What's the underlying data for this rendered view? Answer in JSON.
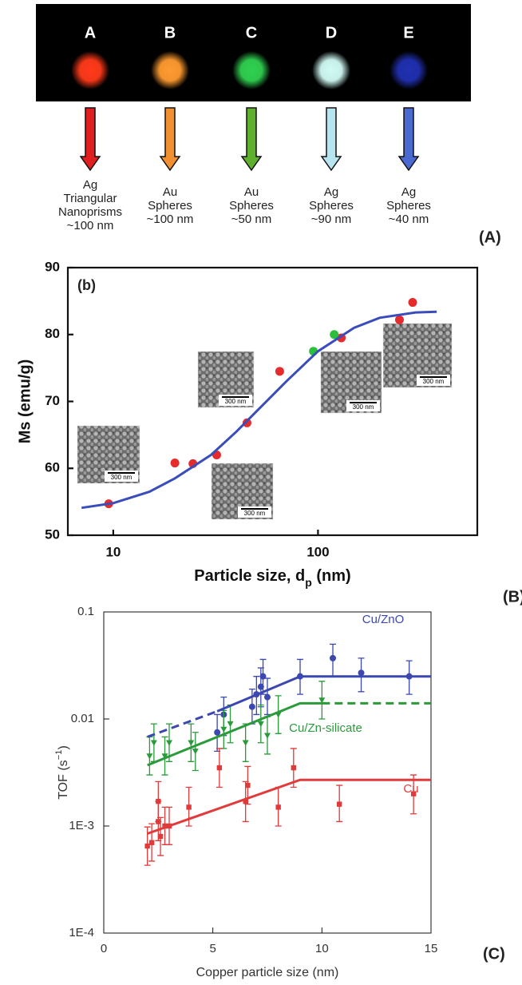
{
  "panel_a": {
    "panel_label": "(A)",
    "items": [
      {
        "letter": "A",
        "glow": "#ff3a1a",
        "arrow": "#e02020",
        "lines": [
          "Ag",
          "Triangular",
          "Nanoprisms",
          "~100 nm"
        ]
      },
      {
        "letter": "B",
        "glow": "#ff9a30",
        "arrow": "#f09030",
        "lines": [
          "Au",
          "Spheres",
          "~100 nm"
        ]
      },
      {
        "letter": "C",
        "glow": "#30d050",
        "arrow": "#60b030",
        "lines": [
          "Au",
          "Spheres",
          "~50 nm"
        ]
      },
      {
        "letter": "D",
        "glow": "#d0fbf4",
        "arrow": "#b8e4f0",
        "lines": [
          "Ag",
          "Spheres",
          "~90 nm"
        ]
      },
      {
        "letter": "E",
        "glow": "#2030b0",
        "arrow": "#4a6ad0",
        "lines": [
          "Ag",
          "Spheres",
          "~40 nm"
        ]
      }
    ]
  },
  "chart_data": [
    {
      "type": "scatter",
      "panel_label": "(B)",
      "title": "(b)",
      "xlabel": {
        "main": "Particle size, d",
        "sub": "p",
        "tail": " (nm)"
      },
      "ylabel": "Ms (emu/g)",
      "xscale": "log",
      "xlim": [
        6,
        600
      ],
      "xticks": [
        10,
        100
      ],
      "ylim": [
        50,
        90
      ],
      "yticks": [
        50,
        60,
        70,
        80,
        90
      ],
      "series": [
        {
          "marker": "circle",
          "color": "#e52b2b",
          "x": [
            9.5,
            20,
            24.5,
            32,
            45,
            65,
            130,
            250,
            290
          ],
          "values": [
            54.7,
            60.8,
            60.7,
            62,
            66.8,
            74.5,
            79.5,
            82.2,
            84.8
          ]
        },
        {
          "marker": "circle",
          "color": "#2bbf3b",
          "x": [
            95,
            120
          ],
          "values": [
            77.5,
            80
          ]
        },
        {
          "type": "line",
          "color": "#3a4dbb",
          "x": [
            7,
            10,
            15,
            20,
            30,
            40,
            50,
            70,
            100,
            150,
            200,
            300,
            380
          ],
          "values": [
            54.1,
            54.8,
            56.5,
            58.5,
            62,
            65.5,
            68.5,
            73,
            77.5,
            81,
            82.5,
            83.3,
            83.4
          ]
        }
      ],
      "insets": [
        {
          "label": "300 nm"
        },
        {
          "label": "300 nm"
        },
        {
          "label": "300 nm"
        },
        {
          "label": "300 nm"
        },
        {
          "label": "300 nm"
        }
      ]
    },
    {
      "type": "scatter",
      "panel_label": "(C)",
      "xlabel": {
        "main": "Copper particle size (nm)"
      },
      "ylabel": {
        "main": "TOF (s",
        "sup": "−1",
        "tail": ")"
      },
      "yscale": "log",
      "xlim": [
        0,
        15
      ],
      "xticks": [
        0,
        5,
        10,
        15
      ],
      "ylim": [
        0.0001,
        0.1
      ],
      "yticks": [
        {
          "value": 0.0001,
          "label": "1E-4"
        },
        {
          "value": 0.001,
          "label": "1E-3"
        },
        0.01,
        0.1
      ],
      "series": [
        {
          "marker": "circle",
          "color": "#3c48b0",
          "x": [
            5.2,
            5.5,
            6.8,
            7.0,
            7.2,
            7.3,
            7.5,
            9.0,
            10.5,
            11.8,
            14.0
          ],
          "values": [
            0.0075,
            0.011,
            0.013,
            0.017,
            0.02,
            0.025,
            0.016,
            0.025,
            0.037,
            0.027,
            0.025
          ],
          "lower": [
            0.005,
            0.007,
            0.009,
            0.011,
            0.013,
            0.017,
            0.011,
            0.017,
            0.025,
            0.018,
            0.017
          ],
          "upper": [
            0.011,
            0.016,
            0.019,
            0.025,
            0.03,
            0.036,
            0.024,
            0.036,
            0.05,
            0.037,
            0.035
          ]
        },
        {
          "marker": "triangle",
          "color": "#2a9a3a",
          "x": [
            2.1,
            2.3,
            2.8,
            3.0,
            4.0,
            4.2,
            5.5,
            5.8,
            6.5,
            7.2,
            7.5,
            8.0,
            10.0
          ],
          "values": [
            0.0045,
            0.006,
            0.0045,
            0.006,
            0.006,
            0.005,
            0.008,
            0.009,
            0.006,
            0.009,
            0.007,
            0.011,
            0.015
          ],
          "lower": [
            0.003,
            0.004,
            0.003,
            0.004,
            0.004,
            0.0033,
            0.0053,
            0.006,
            0.004,
            0.006,
            0.0047,
            0.0073,
            0.01
          ],
          "upper": [
            0.0068,
            0.009,
            0.0068,
            0.009,
            0.009,
            0.0075,
            0.012,
            0.0135,
            0.009,
            0.0135,
            0.0105,
            0.0165,
            0.0225
          ]
        },
        {
          "marker": "square",
          "color": "#e03a3a",
          "x": [
            2.0,
            2.2,
            2.5,
            2.5,
            2.6,
            2.8,
            3.0,
            3.9,
            5.3,
            6.5,
            6.6,
            8.0,
            8.7,
            10.8,
            14.2
          ],
          "values": [
            0.00065,
            0.0007,
            0.0017,
            0.0011,
            0.0008,
            0.001,
            0.001,
            0.0015,
            0.0035,
            0.0017,
            0.0024,
            0.0015,
            0.0035,
            0.0016,
            0.002
          ],
          "lower": [
            0.00043,
            0.00047,
            0.0011,
            0.00073,
            0.00053,
            0.00067,
            0.00067,
            0.001,
            0.0023,
            0.0011,
            0.0016,
            0.001,
            0.0023,
            0.0011,
            0.0013
          ],
          "upper": [
            0.00098,
            0.00105,
            0.0026,
            0.0017,
            0.0012,
            0.0015,
            0.0015,
            0.0023,
            0.0053,
            0.0026,
            0.0036,
            0.0023,
            0.0053,
            0.0024,
            0.003
          ]
        },
        {
          "type": "line",
          "color": "#3c48b0",
          "dash": true,
          "x": [
            2,
            5.2
          ],
          "values": [
            0.0068,
            0.0118
          ]
        },
        {
          "type": "line",
          "color": "#3c48b0",
          "x": [
            5.2,
            9,
            15
          ],
          "values": [
            0.0118,
            0.025,
            0.025
          ]
        },
        {
          "type": "line",
          "color": "#2a9a3a",
          "x": [
            2,
            9,
            10
          ],
          "values": [
            0.0037,
            0.014,
            0.014
          ]
        },
        {
          "type": "line",
          "color": "#2a9a3a",
          "dash": true,
          "x": [
            10,
            15
          ],
          "values": [
            0.014,
            0.014
          ]
        },
        {
          "type": "line",
          "color": "#e03a3a",
          "x": [
            2,
            9,
            15
          ],
          "values": [
            0.00085,
            0.0027,
            0.0027
          ]
        }
      ],
      "annotations": [
        {
          "text": "Cu/ZnO",
          "color": "#3c48b0"
        },
        {
          "text": "Cu/Zn-silicate",
          "color": "#2a9a3a"
        },
        {
          "text": "Cu",
          "color": "#e03a3a"
        }
      ]
    }
  ]
}
